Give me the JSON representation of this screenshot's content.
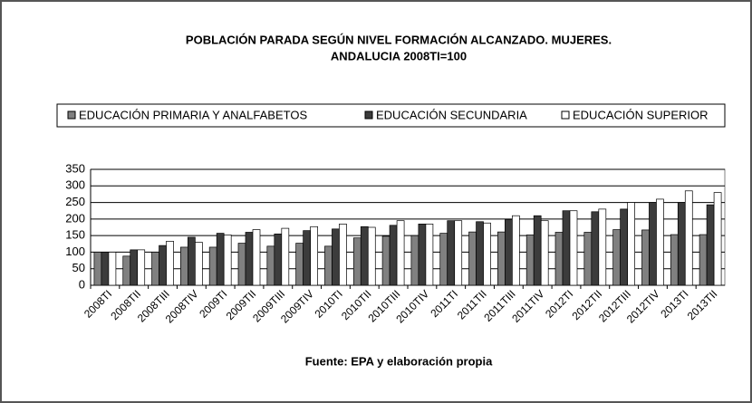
{
  "chart_data": {
    "type": "bar",
    "title": "POBLACIÓN PARADA SEGÚN NIVEL FORMACIÓN ALCANZADO. MUJERES.",
    "subtitle": "ANDALUCIA 2008TI=100",
    "source": "Fuente: EPA y elaboración propia",
    "categories": [
      "2008TI",
      "2008TII",
      "2008TIII",
      "2008TIV",
      "2009TI",
      "2009TII",
      "2009TIII",
      "2009TIV",
      "2010TI",
      "2010TII",
      "2010TIII",
      "2010TIV",
      "2011TI",
      "2011TII",
      "2011TIII",
      "2011TIV",
      "2012TI",
      "2012TII",
      "2012TIII",
      "2012TIV",
      "2013TI",
      "2013TII"
    ],
    "series": [
      {
        "name": "EDUCACIÓN PRIMARIA Y ANALFABETOS",
        "color": "#808080",
        "values": [
          100,
          88,
          100,
          115,
          115,
          127,
          118,
          127,
          118,
          143,
          148,
          150,
          157,
          161,
          161,
          152,
          160,
          160,
          168,
          167,
          153,
          153
        ]
      },
      {
        "name": "EDUCACIÓN SECUNDARIA",
        "color": "#3c3c3c",
        "values": [
          100,
          107,
          120,
          145,
          157,
          160,
          155,
          165,
          170,
          177,
          181,
          185,
          195,
          192,
          198,
          210,
          225,
          222,
          230,
          250,
          250,
          243
        ]
      },
      {
        "name": "EDUCACIÓN SUPERIOR",
        "color": "#ffffff",
        "values": [
          100,
          107,
          133,
          130,
          152,
          168,
          172,
          177,
          185,
          175,
          195,
          185,
          195,
          188,
          210,
          195,
          225,
          230,
          250,
          260,
          285,
          280
        ]
      }
    ],
    "ylim": [
      0,
      350
    ],
    "yticks": [
      0,
      50,
      100,
      150,
      200,
      250,
      300,
      350
    ],
    "grid": true,
    "legend": "top"
  }
}
